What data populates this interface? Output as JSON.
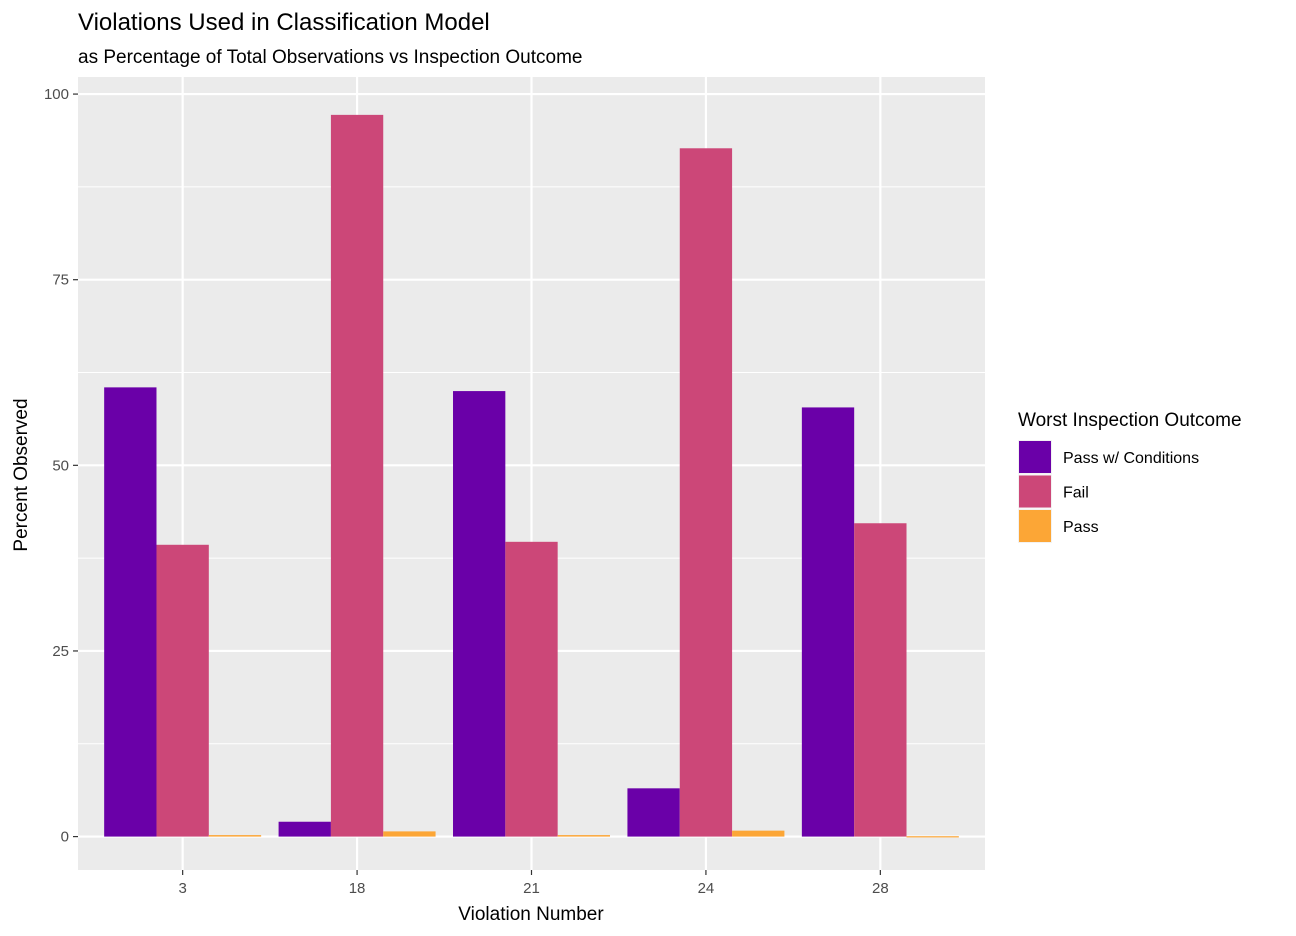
{
  "chart_data": {
    "type": "bar",
    "title": "Violations Used in Classification Model",
    "subtitle": "as Percentage of Total Observations vs Inspection Outcome",
    "xlabel": "Violation Number",
    "ylabel": "Percent Observed",
    "categories": [
      "3",
      "18",
      "21",
      "24",
      "28"
    ],
    "ylim": [
      -4.5,
      102.3
    ],
    "yticks": [
      0,
      25,
      50,
      75,
      100
    ],
    "grid": true,
    "legend": {
      "title": "Worst Inspection Outcome",
      "placement": "right"
    },
    "series": [
      {
        "name": "Pass w/ Conditions",
        "color": "#6A00A8",
        "values": [
          60.5,
          2.0,
          60.0,
          6.5,
          57.8
        ]
      },
      {
        "name": "Fail",
        "color": "#CC4778",
        "values": [
          39.3,
          97.2,
          39.7,
          92.7,
          42.2
        ]
      },
      {
        "name": "Pass",
        "color": "#FCA636",
        "values": [
          0.2,
          0.7,
          0.2,
          0.8,
          0.05
        ]
      }
    ],
    "colors": {
      "panel": "#EBEBEB",
      "gridline": "#FFFFFF"
    }
  }
}
